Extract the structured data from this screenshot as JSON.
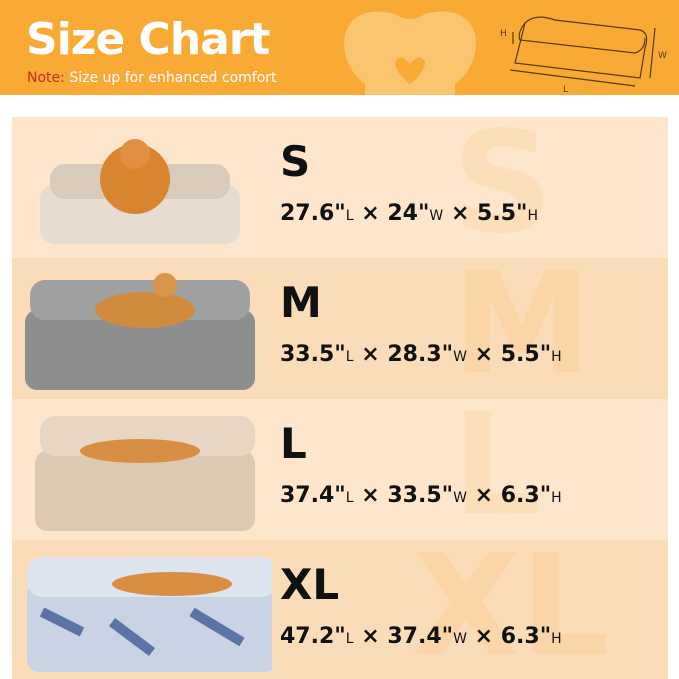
{
  "header": {
    "title": "Size Chart",
    "note_label": "Note:",
    "note_text": "Size up for enhanced comfort",
    "diagram_labels": {
      "height": "H",
      "width": "W",
      "length": "L"
    },
    "colors": {
      "banner": "#f9aa35",
      "note_label": "#c4311a",
      "row_light": "#fde6cc",
      "row_dark": "#fbdcb8"
    }
  },
  "sizes": [
    {
      "size": "S",
      "length": "27.6\"",
      "width": "24\"",
      "height": "5.5\"",
      "bed_color": "#e6dccf",
      "dog": "pomeranian"
    },
    {
      "size": "M",
      "length": "33.5\"",
      "width": "28.3\"",
      "height": "5.5\"",
      "bed_color": "#8d8f8e",
      "dog": "shiba inu"
    },
    {
      "size": "L",
      "length": "37.4\"",
      "width": "33.5\"",
      "height": "6.3\"",
      "bed_color": "#dcc9b3",
      "dog": "shiba inu"
    },
    {
      "size": "XL",
      "length": "47.2\"",
      "width": "37.4\"",
      "height": "6.3\"",
      "bed_color": "#c9d3e3",
      "dog": "shiba inu"
    }
  ],
  "units": {
    "l": "L",
    "w": "W",
    "h": "H",
    "times": "×"
  }
}
